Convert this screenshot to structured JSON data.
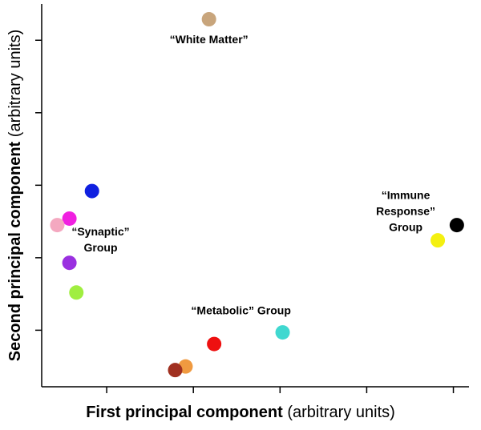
{
  "chart_data": {
    "type": "scatter",
    "xlabel": {
      "main": "First principal component",
      "units": "(arbitrary units)"
    },
    "ylabel": {
      "main": "Second principal component",
      "units": "(arbitrary units)"
    },
    "x": [
      2.18,
      0.83,
      0.57,
      0.43,
      0.57,
      0.65,
      3.03,
      2.24,
      1.91,
      1.79,
      4.82,
      5.04
    ],
    "values": [
      5.29,
      2.92,
      2.54,
      2.45,
      1.93,
      1.52,
      0.97,
      0.81,
      0.5,
      0.45,
      2.24,
      2.45
    ],
    "colors": [
      "#c8a57c",
      "#1020e0",
      "#f020e0",
      "#f4a8c0",
      "#9a30e0",
      "#a0ee40",
      "#40d8d0",
      "#ee1010",
      "#f09a40",
      "#a03020",
      "#f4f010",
      "#000000"
    ],
    "xlim": [
      0.25,
      5.18
    ],
    "ylim": [
      0.22,
      5.5
    ],
    "xticks": [
      1,
      2,
      3,
      4,
      5
    ],
    "yticks": [
      1,
      2,
      3,
      4,
      5
    ],
    "annotations": [
      {
        "lines": [
          "“White Matter”"
        ],
        "x": 2.18,
        "y": 5.0
      },
      {
        "lines": [
          "“Synaptic”",
          "Group"
        ],
        "x": 0.93,
        "y": 2.35
      },
      {
        "lines": [
          "“Immune",
          "Response”",
          "Group"
        ],
        "x": 4.45,
        "y": 2.85
      },
      {
        "lines": [
          "“Metabolic” Group"
        ],
        "x": 2.55,
        "y": 1.26
      }
    ]
  }
}
